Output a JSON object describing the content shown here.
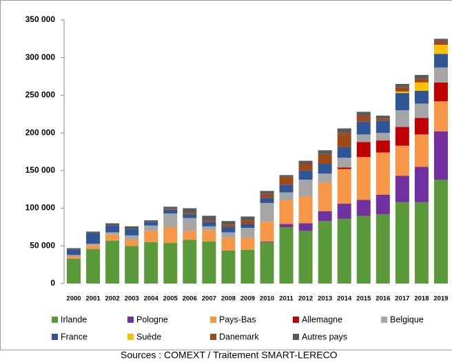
{
  "chart_data": {
    "type": "stacked_bar",
    "source": "Sources : COMEXT / Traitement SMART-LERECO",
    "categories": [
      "2000",
      "2001",
      "2002",
      "2003",
      "2004",
      "2005",
      "2006",
      "2007",
      "2008",
      "2009",
      "2010",
      "2011",
      "2012",
      "2013",
      "2014",
      "2015",
      "2016",
      "2017",
      "2018",
      "2019"
    ],
    "ylim": [
      0,
      350000
    ],
    "yticks": [
      0,
      {
        "value": 50000,
        "label": "50 000"
      },
      {
        "value": 100000,
        "label": "100 000"
      },
      {
        "value": 150000,
        "label": "150 000"
      },
      {
        "value": 200000,
        "label": "200 000"
      },
      {
        "value": 250000,
        "label": "250 000"
      },
      {
        "value": 300000,
        "label": "300 000"
      },
      {
        "value": 350000,
        "label": "350 000"
      }
    ],
    "grid": false,
    "legend": "bottom",
    "series": [
      {
        "name": "Irlande",
        "color": "#5b9a3a",
        "values": [
          33000,
          46000,
          57000,
          50000,
          55000,
          54000,
          58000,
          56000,
          44000,
          45000,
          55000,
          75000,
          70000,
          83000,
          86000,
          90000,
          92000,
          108000,
          108000,
          138000
        ]
      },
      {
        "name": "Pologne",
        "color": "#7030a0",
        "values": [
          0,
          0,
          0,
          0,
          0,
          0,
          0,
          0,
          0,
          0,
          1000,
          4000,
          10000,
          13000,
          20000,
          21000,
          26000,
          35000,
          47000,
          64000
        ]
      },
      {
        "name": "Pays-Bas",
        "color": "#f79646",
        "values": [
          3000,
          5000,
          8000,
          8000,
          15000,
          21000,
          12000,
          15000,
          17000,
          16000,
          26000,
          32000,
          36000,
          38000,
          46000,
          57000,
          56000,
          40000,
          43000,
          40000
        ]
      },
      {
        "name": "Allemagne",
        "color": "#c00000",
        "values": [
          0,
          0,
          0,
          0,
          0,
          0,
          0,
          0,
          0,
          0,
          0,
          0,
          0,
          0,
          2000,
          20000,
          16000,
          25000,
          22000,
          25000
        ]
      },
      {
        "name": "Belgique",
        "color": "#a5a5a5",
        "values": [
          2000,
          2000,
          3000,
          6000,
          7000,
          18000,
          17000,
          5000,
          7000,
          13000,
          25000,
          10000,
          22000,
          12000,
          13000,
          10000,
          10000,
          22000,
          19000,
          20000
        ]
      },
      {
        "name": "France",
        "color": "#2f5597",
        "values": [
          7000,
          14000,
          9000,
          8000,
          5000,
          5000,
          5000,
          6000,
          7000,
          5000,
          7000,
          10000,
          12000,
          13000,
          14000,
          17000,
          16000,
          23000,
          17000,
          18000
        ]
      },
      {
        "name": "Suède",
        "color": "#ffc000",
        "values": [
          0,
          0,
          0,
          0,
          0,
          0,
          0,
          0,
          0,
          0,
          0,
          0,
          0,
          0,
          0,
          0,
          0,
          2000,
          11000,
          12000
        ]
      },
      {
        "name": "Danemark",
        "color": "#9c4a1a",
        "values": [
          0,
          0,
          0,
          0,
          0,
          1000,
          2000,
          2000,
          3000,
          5000,
          5000,
          11000,
          9000,
          13000,
          19000,
          8000,
          3000,
          6000,
          5000,
          5000
        ]
      },
      {
        "name": "Autres pays",
        "color": "#595959",
        "values": [
          2000,
          2000,
          3000,
          4000,
          2000,
          3000,
          6000,
          6000,
          5000,
          5000,
          4000,
          2000,
          4000,
          5000,
          6000,
          5000,
          4000,
          4000,
          5000,
          3000
        ]
      }
    ]
  }
}
